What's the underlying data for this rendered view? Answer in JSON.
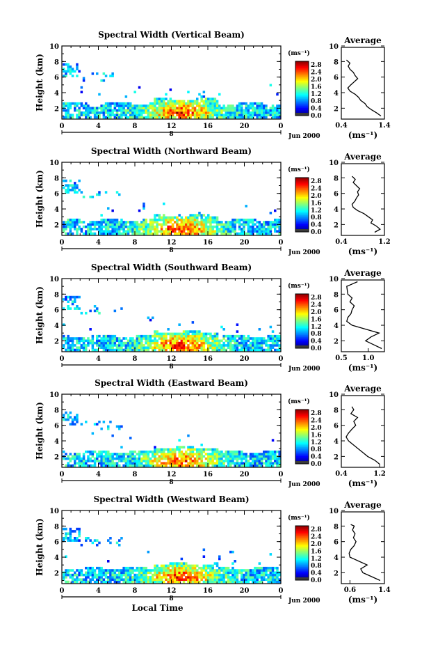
{
  "chart_data": [
    {
      "type": "heatmap",
      "title": "Spectral Width (Vertical Beam)",
      "ylabel": "Height (km)",
      "x_ticks": [
        "0",
        "4",
        "8",
        "12",
        "16",
        "20",
        "0"
      ],
      "y_ticks": [
        "2",
        "4",
        "6",
        "8",
        "10"
      ],
      "xlim": [
        0,
        24
      ],
      "ylim": [
        0.6,
        10
      ],
      "date_label": "8",
      "date_suffix": "Jun 2000",
      "colorbar": {
        "unit": "(ms⁻¹)",
        "ticks": [
          "0.0",
          "0.4",
          "0.8",
          "1.2",
          "1.6",
          "2.0",
          "2.4",
          "2.8"
        ],
        "range": [
          0,
          3.0
        ]
      },
      "average": {
        "title": "Average",
        "xlabel": "(ms⁻¹)",
        "x_ticks": [
          "0.4",
          "1.4"
        ],
        "xlim": [
          0.4,
          1.4
        ],
        "y_ticks": [
          "2",
          "4",
          "6",
          "8",
          "10"
        ],
        "ylim": [
          0.6,
          10
        ],
        "profile": [
          [
            1.32,
            1.0
          ],
          [
            1.22,
            1.4
          ],
          [
            1.1,
            1.8
          ],
          [
            1.0,
            2.2
          ],
          [
            0.95,
            2.6
          ],
          [
            0.85,
            3.0
          ],
          [
            0.8,
            3.4
          ],
          [
            0.72,
            3.8
          ],
          [
            0.6,
            4.2
          ],
          [
            0.55,
            4.6
          ],
          [
            0.62,
            5.0
          ],
          [
            0.7,
            5.4
          ],
          [
            0.78,
            5.8
          ],
          [
            0.72,
            6.2
          ],
          [
            0.68,
            6.6
          ],
          [
            0.6,
            7.0
          ],
          [
            0.56,
            7.4
          ],
          [
            0.6,
            7.8
          ],
          [
            0.52,
            8.2
          ]
        ]
      }
    },
    {
      "type": "heatmap",
      "title": "Spectral Width (Northward Beam)",
      "ylabel": "Height (km)",
      "x_ticks": [
        "0",
        "4",
        "8",
        "12",
        "16",
        "20",
        "0"
      ],
      "y_ticks": [
        "2",
        "4",
        "6",
        "8",
        "10"
      ],
      "xlim": [
        0,
        24
      ],
      "ylim": [
        0.6,
        10
      ],
      "date_label": "8",
      "date_suffix": "Jun 2000",
      "colorbar": {
        "unit": "(ms⁻¹)",
        "ticks": [
          "0.0",
          "0.4",
          "0.8",
          "1.2",
          "1.6",
          "2.0",
          "2.4",
          "2.8"
        ],
        "range": [
          0,
          3.0
        ]
      },
      "average": {
        "title": "Average",
        "xlabel": "(ms⁻¹)",
        "x_ticks": [
          "0.4",
          "1.2"
        ],
        "xlim": [
          0.4,
          1.2
        ],
        "y_ticks": [
          "2",
          "4",
          "6",
          "8",
          "10"
        ],
        "ylim": [
          0.6,
          10
        ],
        "profile": [
          [
            1.02,
            1.0
          ],
          [
            1.12,
            1.4
          ],
          [
            1.05,
            1.8
          ],
          [
            0.95,
            2.2
          ],
          [
            0.98,
            2.6
          ],
          [
            0.9,
            3.0
          ],
          [
            0.82,
            3.4
          ],
          [
            0.7,
            3.8
          ],
          [
            0.62,
            4.2
          ],
          [
            0.6,
            4.6
          ],
          [
            0.65,
            5.0
          ],
          [
            0.68,
            5.4
          ],
          [
            0.72,
            5.8
          ],
          [
            0.7,
            6.2
          ],
          [
            0.74,
            6.6
          ],
          [
            0.68,
            7.0
          ],
          [
            0.62,
            7.4
          ],
          [
            0.66,
            7.8
          ],
          [
            0.6,
            8.2
          ]
        ]
      }
    },
    {
      "type": "heatmap",
      "title": "Spectral Width (Southward Beam)",
      "ylabel": "Height (km)",
      "x_ticks": [
        "0",
        "4",
        "8",
        "12",
        "16",
        "20",
        "0"
      ],
      "y_ticks": [
        "2",
        "4",
        "6",
        "8",
        "10"
      ],
      "xlim": [
        0,
        24
      ],
      "ylim": [
        0.6,
        10
      ],
      "date_label": "8",
      "date_suffix": "Jun 2000",
      "colorbar": {
        "unit": "(ms⁻¹)",
        "ticks": [
          "0.0",
          "0.4",
          "0.8",
          "1.2",
          "1.6",
          "2.0",
          "2.4",
          "2.8"
        ],
        "range": [
          0,
          3.0
        ]
      },
      "average": {
        "title": "Average",
        "xlabel": "(ms⁻¹)",
        "x_ticks": [
          "0.5",
          "1.0"
        ],
        "xlim": [
          0.5,
          1.3
        ],
        "y_ticks": [
          "2",
          "4",
          "6",
          "8",
          "10"
        ],
        "ylim": [
          0.6,
          10
        ],
        "profile": [
          [
            1.25,
            1.0
          ],
          [
            1.1,
            1.5
          ],
          [
            0.95,
            2.0
          ],
          [
            1.05,
            2.5
          ],
          [
            1.2,
            3.0
          ],
          [
            0.95,
            3.5
          ],
          [
            0.7,
            4.0
          ],
          [
            0.6,
            4.5
          ],
          [
            0.62,
            5.0
          ],
          [
            0.68,
            5.5
          ],
          [
            0.7,
            6.0
          ],
          [
            0.74,
            6.5
          ],
          [
            0.66,
            7.0
          ],
          [
            0.7,
            7.5
          ],
          [
            0.62,
            8.0
          ],
          [
            0.6,
            9.0
          ],
          [
            0.8,
            9.6
          ]
        ]
      }
    },
    {
      "type": "heatmap",
      "title": "Spectral Width (Eastward Beam)",
      "ylabel": "Height (km)",
      "x_ticks": [
        "0",
        "4",
        "8",
        "12",
        "16",
        "20",
        "0"
      ],
      "y_ticks": [
        "2",
        "4",
        "6",
        "8",
        "10"
      ],
      "xlim": [
        0,
        24
      ],
      "ylim": [
        0.6,
        10
      ],
      "date_label": "8",
      "date_suffix": "Jun 2000",
      "colorbar": {
        "unit": "(ms⁻¹)",
        "ticks": [
          "0.0",
          "0.4",
          "0.8",
          "1.2",
          "1.6",
          "2.0",
          "2.4",
          "2.8"
        ],
        "range": [
          0,
          3.0
        ]
      },
      "average": {
        "title": "Average",
        "xlabel": "(ms⁻¹)",
        "x_ticks": [
          "0.4",
          "1.2"
        ],
        "xlim": [
          0.4,
          1.3
        ],
        "y_ticks": [
          "2",
          "4",
          "6",
          "8",
          "10"
        ],
        "ylim": [
          0.6,
          10
        ],
        "profile": [
          [
            1.2,
            1.0
          ],
          [
            1.1,
            1.5
          ],
          [
            0.95,
            2.0
          ],
          [
            0.85,
            2.5
          ],
          [
            0.75,
            3.0
          ],
          [
            0.65,
            3.5
          ],
          [
            0.55,
            4.0
          ],
          [
            0.5,
            4.5
          ],
          [
            0.55,
            5.0
          ],
          [
            0.62,
            5.5
          ],
          [
            0.7,
            6.0
          ],
          [
            0.66,
            6.5
          ],
          [
            0.74,
            7.0
          ],
          [
            0.6,
            7.5
          ],
          [
            0.66,
            8.0
          ],
          [
            0.62,
            8.4
          ]
        ]
      }
    },
    {
      "type": "heatmap",
      "title": "Spectral Width (Westward Beam)",
      "ylabel": "Height (km)",
      "x_ticks": [
        "0",
        "4",
        "8",
        "12",
        "16",
        "20",
        "0"
      ],
      "y_ticks": [
        "2",
        "4",
        "6",
        "8",
        "10"
      ],
      "xlim": [
        0,
        24
      ],
      "ylim": [
        0.6,
        10
      ],
      "date_label": "8",
      "date_suffix": "Jun 2000",
      "xlabel": "Local Time",
      "colorbar": {
        "unit": "(ms⁻¹)",
        "ticks": [
          "0.0",
          "0.4",
          "0.8",
          "1.2",
          "1.6",
          "2.0",
          "2.4",
          "2.8"
        ],
        "range": [
          0,
          3.0
        ]
      },
      "average": {
        "title": "Average",
        "xlabel": "(ms⁻¹)",
        "x_ticks": [
          "0.6",
          "1.4"
        ],
        "xlim": [
          0.4,
          1.4
        ],
        "y_ticks": [
          "2",
          "4",
          "6",
          "8",
          "10"
        ],
        "ylim": [
          0.6,
          10
        ],
        "profile": [
          [
            1.3,
            1.0
          ],
          [
            1.1,
            1.5
          ],
          [
            0.9,
            2.0
          ],
          [
            0.85,
            2.5
          ],
          [
            1.0,
            3.0
          ],
          [
            0.8,
            3.5
          ],
          [
            0.6,
            4.0
          ],
          [
            0.58,
            4.5
          ],
          [
            0.62,
            5.0
          ],
          [
            0.7,
            5.5
          ],
          [
            0.74,
            6.0
          ],
          [
            0.68,
            6.5
          ],
          [
            0.72,
            7.0
          ],
          [
            0.66,
            7.5
          ],
          [
            0.7,
            8.0
          ],
          [
            0.62,
            8.2
          ]
        ]
      }
    }
  ]
}
